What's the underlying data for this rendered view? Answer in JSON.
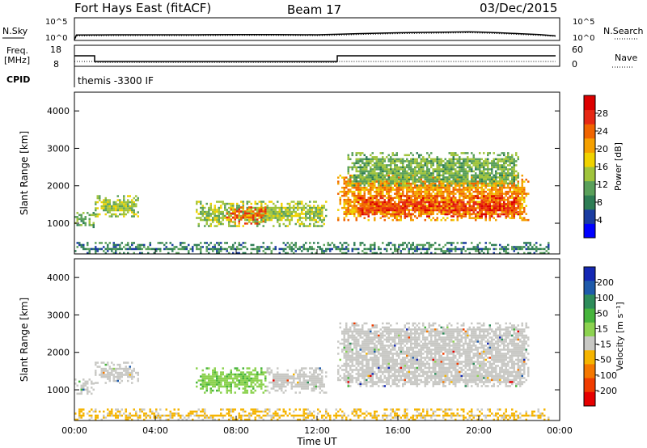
{
  "header": {
    "station": "Fort Hays East (fitACF)",
    "beam": "Beam 17",
    "date": "03/Dec/2015"
  },
  "labels": {
    "nsky": "N.Sky",
    "nsearch": "N.Search",
    "freq_line1": "Freq.",
    "freq_line2": "[MHz]",
    "nave": "Nave",
    "cpid": "CPID",
    "cpid_value": "themis -3300 IF",
    "xlabel": "Time UT"
  },
  "chart_data": [
    {
      "type": "line",
      "name": "noise",
      "left_ticks": [
        "10^5",
        "10^0"
      ],
      "right_ticks": [
        "10^5",
        "10^0"
      ],
      "series": [
        {
          "name": "N.Sky",
          "style": "solid",
          "x": [
            0.0,
            0.1,
            2,
            4,
            6,
            8,
            10,
            12,
            13,
            14,
            16,
            18,
            19.5,
            20,
            21,
            22,
            23,
            23.8
          ],
          "y": [
            0.15,
            1.2,
            1.25,
            1.25,
            1.25,
            1.3,
            1.3,
            1.25,
            1.35,
            1.5,
            1.7,
            1.8,
            1.9,
            1.85,
            1.7,
            1.5,
            1.3,
            1.0
          ]
        },
        {
          "name": "N.Search",
          "style": "dotted",
          "x": [
            0.0,
            0.1,
            2,
            4,
            6,
            8,
            10,
            12,
            13,
            14,
            16,
            18,
            19.5,
            20,
            21,
            22,
            23,
            23.8
          ],
          "y": [
            0.1,
            1.0,
            1.05,
            1.05,
            1.05,
            1.1,
            1.1,
            1.05,
            1.15,
            1.3,
            1.5,
            1.6,
            1.7,
            1.65,
            1.5,
            1.3,
            1.1,
            0.9
          ]
        }
      ]
    },
    {
      "type": "line",
      "name": "frequency-nave",
      "left_ticks": [
        "18",
        "8"
      ],
      "right_ticks": [
        "60",
        "0"
      ],
      "series": [
        {
          "name": "Freq.",
          "style": "solid",
          "x": [
            0.0,
            1.0,
            1.0,
            13.0,
            13.0,
            23.8
          ],
          "y": [
            13.0,
            13.0,
            10.3,
            10.3,
            13.0,
            13.0
          ]
        },
        {
          "name": "Nave",
          "style": "dotted",
          "x": [
            0.0,
            1.0,
            1.0,
            13.0,
            13.0,
            23.8
          ],
          "y": [
            10.3,
            10.3,
            9.8,
            9.8,
            10.3,
            10.3
          ]
        }
      ]
    },
    {
      "type": "heatmap",
      "name": "power",
      "ylabel": "Slant Range [km]",
      "xlim": [
        0,
        24
      ],
      "ylim": [
        180,
        4500
      ],
      "y_ticks": [
        "1000",
        "2000",
        "3000",
        "4000"
      ],
      "colorbar_label": "Power [dB]",
      "colorbar_ticks": [
        "4",
        "8",
        "12",
        "16",
        "20",
        "24",
        "28"
      ],
      "colorbar_colors": [
        "#0000ff",
        "#1a3ca0",
        "#2e7d55",
        "#5aa05a",
        "#a0c43c",
        "#f0d200",
        "#f5a000",
        "#f06400",
        "#e62814",
        "#dc0000"
      ],
      "regions": [
        {
          "x0": 0.0,
          "x1": 1.0,
          "y0": 900,
          "y1": 1300,
          "level": 12
        },
        {
          "x0": 1.0,
          "x1": 3.2,
          "y0": 1200,
          "y1": 1750,
          "level": 14
        },
        {
          "x0": 6.0,
          "x1": 12.5,
          "y0": 950,
          "y1": 1600,
          "level": 14
        },
        {
          "x0": 7.5,
          "x1": 9.5,
          "y0": 1000,
          "y1": 1450,
          "level": 26
        },
        {
          "x0": 13.0,
          "x1": 22.5,
          "y0": 1100,
          "y1": 2300,
          "level": 22
        },
        {
          "x0": 14.0,
          "x1": 22.0,
          "y0": 1200,
          "y1": 1750,
          "level": 28
        },
        {
          "x0": 13.5,
          "x1": 22.0,
          "y0": 2000,
          "y1": 2900,
          "level": 12
        },
        {
          "x0": 0.0,
          "x1": 23.5,
          "y0": 200,
          "y1": 500,
          "level": 8
        }
      ]
    },
    {
      "type": "heatmap",
      "name": "velocity",
      "ylabel": "Slant Range [km]",
      "xlim": [
        0,
        24
      ],
      "ylim": [
        180,
        4500
      ],
      "y_ticks": [
        "1000",
        "2000",
        "3000",
        "4000"
      ],
      "colorbar_label": "Velocity [m s⁻¹]",
      "colorbar_ticks": [
        "200",
        "100",
        "50",
        "15",
        "-15",
        "-50",
        "-100",
        "-200"
      ],
      "colorbar_colors": [
        "#1428b4",
        "#1e5aaa",
        "#2d8c5a",
        "#46b43c",
        "#8cd250",
        "#c8c8c4",
        "#f5b400",
        "#f57800",
        "#f03c00",
        "#e60000"
      ],
      "regions": [
        {
          "x0": 0.0,
          "x1": 1.0,
          "y0": 900,
          "y1": 1300,
          "level": 0
        },
        {
          "x0": 1.0,
          "x1": 3.2,
          "y0": 1200,
          "y1": 1750,
          "level": 0
        },
        {
          "x0": 6.0,
          "x1": 9.5,
          "y0": 950,
          "y1": 1600,
          "level": 30
        },
        {
          "x0": 9.5,
          "x1": 12.5,
          "y0": 950,
          "y1": 1600,
          "level": 0
        },
        {
          "x0": 13.0,
          "x1": 22.5,
          "y0": 1100,
          "y1": 2800,
          "level": 0
        },
        {
          "x0": 0.0,
          "x1": 23.5,
          "y0": 200,
          "y1": 500,
          "level": -20
        }
      ]
    }
  ],
  "x_ticks": [
    "00:00",
    "04:00",
    "08:00",
    "12:00",
    "16:00",
    "20:00",
    "00:00"
  ]
}
